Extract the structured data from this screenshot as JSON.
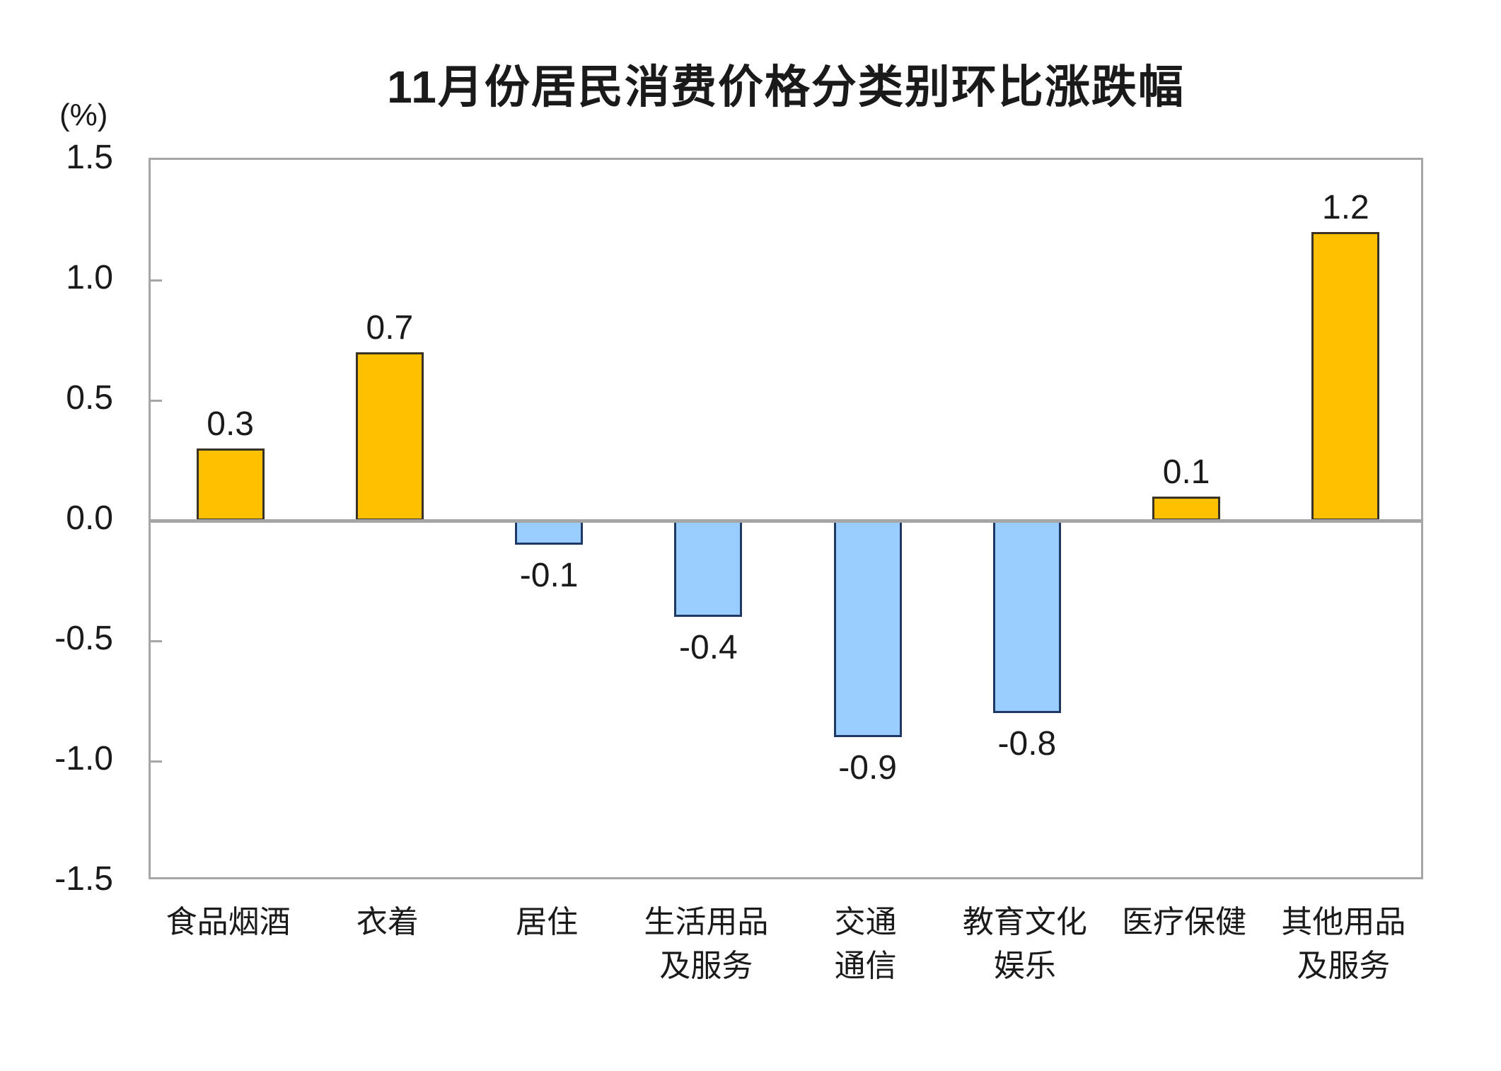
{
  "chart_data": {
    "type": "bar",
    "title": "11月份居民消费价格分类别环比涨跌幅",
    "unit_label": "(%)",
    "categories": [
      "食品烟酒",
      "衣着",
      "居住",
      "生活用品\n及服务",
      "交通\n通信",
      "教育文化\n娱乐",
      "医疗保健",
      "其他用品\n及服务"
    ],
    "values": [
      0.3,
      0.7,
      -0.1,
      -0.4,
      -0.9,
      -0.8,
      0.1,
      1.2
    ],
    "value_labels": [
      "0.3",
      "0.7",
      "-0.1",
      "-0.4",
      "-0.9",
      "-0.8",
      "0.1",
      "1.2"
    ],
    "y_tick_labels": [
      "1.5",
      "1.0",
      "0.5",
      "0.0",
      "-0.5",
      "-1.0",
      "-1.5"
    ],
    "ylim": [
      -1.5,
      1.5
    ],
    "xlabel": "",
    "ylabel": "(%)",
    "grid": false,
    "legend": "none",
    "colors": {
      "positive_bar": "#FFC000",
      "negative_bar": "#99CCFF",
      "axis_and_zero_line": "#a6a6a6",
      "text": "#1a1a1a"
    }
  }
}
